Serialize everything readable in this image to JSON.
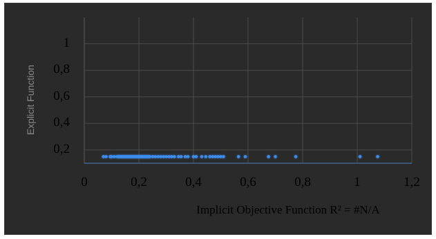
{
  "chart_data": {
    "type": "scatter",
    "title": "",
    "xlabel": "Implicit Objective Function R² = #N/A",
    "ylabel": "Explicit Function",
    "xlim": [
      0,
      1.2
    ],
    "ylim": [
      0.1,
      1.2
    ],
    "grid": true,
    "x_ticks": [
      "0",
      "0,2",
      "0,4",
      "0,6",
      "0,8",
      "1",
      "1,2"
    ],
    "x_tick_values": [
      0,
      0.2,
      0.4,
      0.6,
      0.8,
      1,
      1.2
    ],
    "y_ticks": [
      "0,2",
      "0,4",
      "0,6",
      "0,8",
      "1"
    ],
    "y_tick_values": [
      0.2,
      0.4,
      0.6,
      0.8,
      1
    ],
    "marker_color": "#3d8ef0",
    "series": [
      {
        "x": [
          0.07,
          0.08,
          0.095,
          0.1,
          0.11,
          0.12,
          0.125,
          0.13,
          0.135,
          0.14,
          0.145,
          0.15,
          0.155,
          0.16,
          0.165,
          0.17,
          0.175,
          0.18,
          0.185,
          0.19,
          0.195,
          0.2,
          0.205,
          0.21,
          0.215,
          0.22,
          0.225,
          0.23,
          0.235,
          0.24,
          0.25,
          0.26,
          0.27,
          0.28,
          0.29,
          0.3,
          0.31,
          0.32,
          0.33,
          0.345,
          0.355,
          0.37,
          0.38,
          0.4,
          0.41,
          0.43,
          0.445,
          0.46,
          0.47,
          0.48,
          0.49,
          0.5,
          0.51,
          0.565,
          0.59,
          0.675,
          0.7,
          0.775,
          1.01,
          1.075
        ],
        "y": [
          0.15,
          0.15,
          0.15,
          0.15,
          0.15,
          0.15,
          0.15,
          0.15,
          0.15,
          0.15,
          0.15,
          0.15,
          0.15,
          0.15,
          0.15,
          0.15,
          0.15,
          0.15,
          0.15,
          0.15,
          0.15,
          0.15,
          0.15,
          0.15,
          0.15,
          0.15,
          0.15,
          0.15,
          0.15,
          0.15,
          0.15,
          0.15,
          0.15,
          0.15,
          0.15,
          0.15,
          0.15,
          0.15,
          0.15,
          0.15,
          0.15,
          0.15,
          0.15,
          0.15,
          0.15,
          0.15,
          0.15,
          0.15,
          0.15,
          0.15,
          0.15,
          0.15,
          0.15,
          0.15,
          0.15,
          0.15,
          0.15,
          0.15,
          0.15,
          0.15
        ]
      }
    ]
  }
}
